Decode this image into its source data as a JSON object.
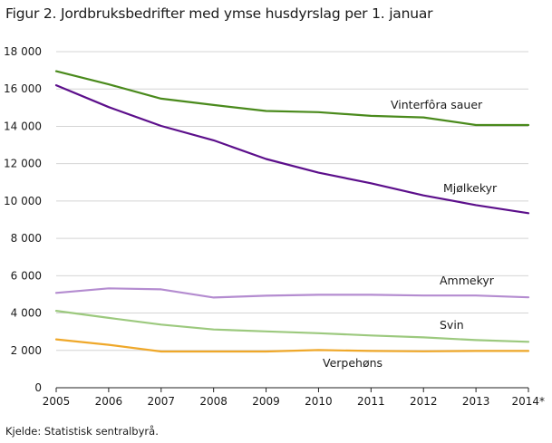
{
  "chart_data": {
    "type": "line",
    "title": "Figur 2. Jordbruksbedrifter med ymse husdyrslag per 1. januar",
    "source": "Kjelde: Statistisk sentralbyrå.",
    "x": [
      "2005",
      "2006",
      "2007",
      "2008",
      "2009",
      "2010",
      "2011",
      "2012",
      "2013",
      "2014*"
    ],
    "ylim": [
      0,
      18000
    ],
    "yticks": [
      0,
      2000,
      4000,
      6000,
      8000,
      10000,
      12000,
      14000,
      16000,
      18000
    ],
    "ytick_labels": [
      "0",
      "2 000",
      "4 000",
      "6 000",
      "8 000",
      "10 000",
      "12 000",
      "14 000",
      "16 000",
      "18 000"
    ],
    "grid": "horizontal",
    "series": [
      {
        "name": "Vinterfôra sauer",
        "color": "#4a8a1c",
        "values": [
          16950,
          16250,
          15480,
          15140,
          14820,
          14760,
          14560,
          14480,
          14070,
          14070
        ]
      },
      {
        "name": "Mjølkekyr",
        "color": "#5c0f8b",
        "values": [
          16200,
          15030,
          14020,
          13250,
          12250,
          11520,
          10950,
          10300,
          9780,
          9350
        ]
      },
      {
        "name": "Ammekyr",
        "color": "#b48cd0",
        "values": [
          5080,
          5320,
          5270,
          4830,
          4930,
          4980,
          4980,
          4940,
          4940,
          4840
        ]
      },
      {
        "name": "Svin",
        "color": "#9cc97e",
        "values": [
          4120,
          3740,
          3380,
          3120,
          3020,
          2920,
          2800,
          2700,
          2550,
          2460
        ]
      },
      {
        "name": "Verpehøns",
        "color": "#efa82a",
        "values": [
          2590,
          2300,
          1940,
          1940,
          1940,
          2020,
          1970,
          1950,
          1970,
          1970
        ]
      }
    ]
  }
}
